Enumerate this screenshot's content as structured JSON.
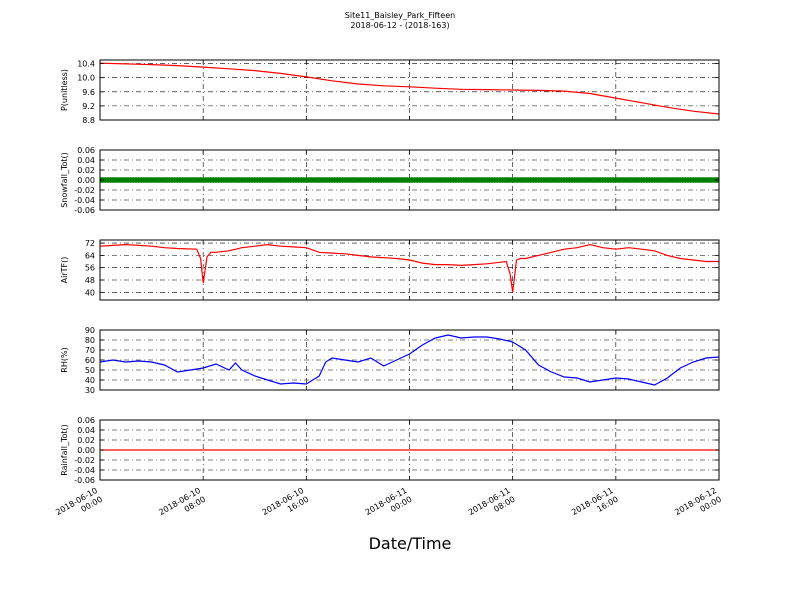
{
  "figure": {
    "title_line1": "Site11_Baisley_Park_Fifteen",
    "title_line2": "2018-06-12 - (2018-163)",
    "xlabel": "Date/Time"
  },
  "chart_data": {
    "type": "line",
    "x_axis": {
      "range": [
        "2018-06-10 00:00",
        "2018-06-12 00:00"
      ],
      "tick_labels": [
        [
          "2018-06-10",
          "00:00"
        ],
        [
          "2018-06-10",
          "08:00"
        ],
        [
          "2018-06-10",
          "16:00"
        ],
        [
          "2018-06-11",
          "00:00"
        ],
        [
          "2018-06-11",
          "08:00"
        ],
        [
          "2018-06-11",
          "16:00"
        ],
        [
          "2018-06-12",
          "00:00"
        ]
      ]
    },
    "panels": [
      {
        "id": "p",
        "ylabel": "P(unitless)",
        "ylim": [
          8.8,
          10.5
        ],
        "yticks": [
          "8.8",
          "9.2",
          "9.6",
          "10.0",
          "10.4"
        ],
        "ytick_values": [
          8.8,
          9.2,
          9.6,
          10.0,
          10.4
        ],
        "color": "#ff0000",
        "marker": false,
        "grid": true,
        "x_hours": [
          0,
          2,
          4,
          6,
          8,
          10,
          12,
          14,
          16,
          18,
          20,
          22,
          24,
          26,
          28,
          30,
          32,
          34,
          36,
          38,
          40,
          42,
          44,
          46,
          48
        ],
        "values": [
          10.41,
          10.39,
          10.37,
          10.34,
          10.3,
          10.25,
          10.2,
          10.12,
          10.02,
          9.91,
          9.82,
          9.77,
          9.74,
          9.7,
          9.67,
          9.66,
          9.65,
          9.64,
          9.62,
          9.55,
          9.42,
          9.29,
          9.16,
          9.05,
          8.97
        ]
      },
      {
        "id": "snow",
        "ylabel": "Snowfall_Tot()",
        "ylim": [
          -0.06,
          0.06
        ],
        "yticks": [
          "-0.06",
          "-0.04",
          "-0.02",
          "0.00",
          "0.02",
          "0.04",
          "0.06"
        ],
        "ytick_values": [
          -0.06,
          -0.04,
          -0.02,
          0.0,
          0.02,
          0.04,
          0.06
        ],
        "color": "#008000",
        "marker": true,
        "grid": true,
        "x_hours": [
          0,
          48
        ],
        "values": [
          0.0,
          0.0
        ]
      },
      {
        "id": "air",
        "ylabel": "AirTF()",
        "ylim": [
          35,
          74
        ],
        "yticks": [
          "40",
          "48",
          "56",
          "64",
          "72"
        ],
        "ytick_values": [
          40,
          48,
          56,
          64,
          72
        ],
        "color": "#ff0000",
        "marker": false,
        "grid": true,
        "x_hours": [
          0,
          1,
          2,
          3,
          4,
          5,
          6,
          7.5,
          7.8,
          8.0,
          8.3,
          8.6,
          9,
          10,
          11,
          12,
          13,
          14,
          15,
          16,
          17,
          18,
          19,
          20,
          21,
          22,
          23,
          24,
          25,
          26,
          27,
          28,
          29,
          30,
          31,
          31.5,
          31.8,
          32.0,
          32.3,
          32.6,
          33,
          34,
          35,
          36,
          37,
          38,
          39,
          40,
          41,
          42,
          43,
          44,
          45,
          46,
          47,
          48
        ],
        "values": [
          70,
          70.5,
          71,
          70.5,
          70,
          69,
          68.5,
          68,
          62,
          46,
          63,
          66,
          66,
          67,
          69,
          70,
          71,
          70,
          69.5,
          69,
          66,
          65.5,
          65,
          64,
          63,
          62.5,
          62,
          61,
          59,
          58,
          58,
          57.5,
          58,
          58.5,
          59.5,
          60,
          52,
          40,
          61,
          62,
          62,
          64,
          66,
          68,
          69,
          71,
          69,
          68,
          69,
          68,
          67,
          64,
          62,
          61,
          60,
          60
        ]
      },
      {
        "id": "rh",
        "ylabel": "RH(%)",
        "ylim": [
          30,
          90
        ],
        "yticks": [
          "30",
          "40",
          "50",
          "60",
          "70",
          "80",
          "90"
        ],
        "ytick_values": [
          30,
          40,
          50,
          60,
          70,
          80,
          90
        ],
        "color": "#0000ff",
        "marker": false,
        "grid": true,
        "x_hours": [
          0,
          1,
          2,
          3,
          4,
          5,
          6,
          7,
          8,
          9,
          10,
          10.5,
          11,
          12,
          13,
          14,
          15,
          16,
          17,
          17.5,
          18,
          19,
          20,
          21,
          22,
          23,
          24,
          25,
          26,
          27,
          28,
          29,
          30,
          31,
          32,
          33,
          34,
          35,
          36,
          37,
          38,
          39,
          40,
          41,
          42,
          43,
          44,
          45,
          46,
          47,
          48
        ],
        "values": [
          58,
          60,
          58,
          59,
          58,
          55,
          48,
          50,
          52,
          56,
          50,
          57,
          50,
          44,
          40,
          36,
          37,
          36,
          44,
          58,
          62,
          60,
          58,
          62,
          54,
          60,
          66,
          75,
          82,
          85,
          82,
          83,
          83,
          81,
          78,
          70,
          55,
          48,
          43,
          42,
          38,
          40,
          42,
          41,
          38,
          35,
          42,
          52,
          58,
          62,
          63
        ]
      },
      {
        "id": "rain",
        "ylabel": "Rainfall_Tot()",
        "ylim": [
          -0.06,
          0.06
        ],
        "yticks": [
          "-0.06",
          "-0.04",
          "-0.02",
          "0.00",
          "0.02",
          "0.04",
          "0.06"
        ],
        "ytick_values": [
          -0.06,
          -0.04,
          -0.02,
          0.0,
          0.02,
          0.04,
          0.06
        ],
        "color": "#ff0000",
        "marker": false,
        "grid": true,
        "x_hours": [
          0,
          48
        ],
        "values": [
          0.0,
          0.0
        ]
      }
    ]
  }
}
